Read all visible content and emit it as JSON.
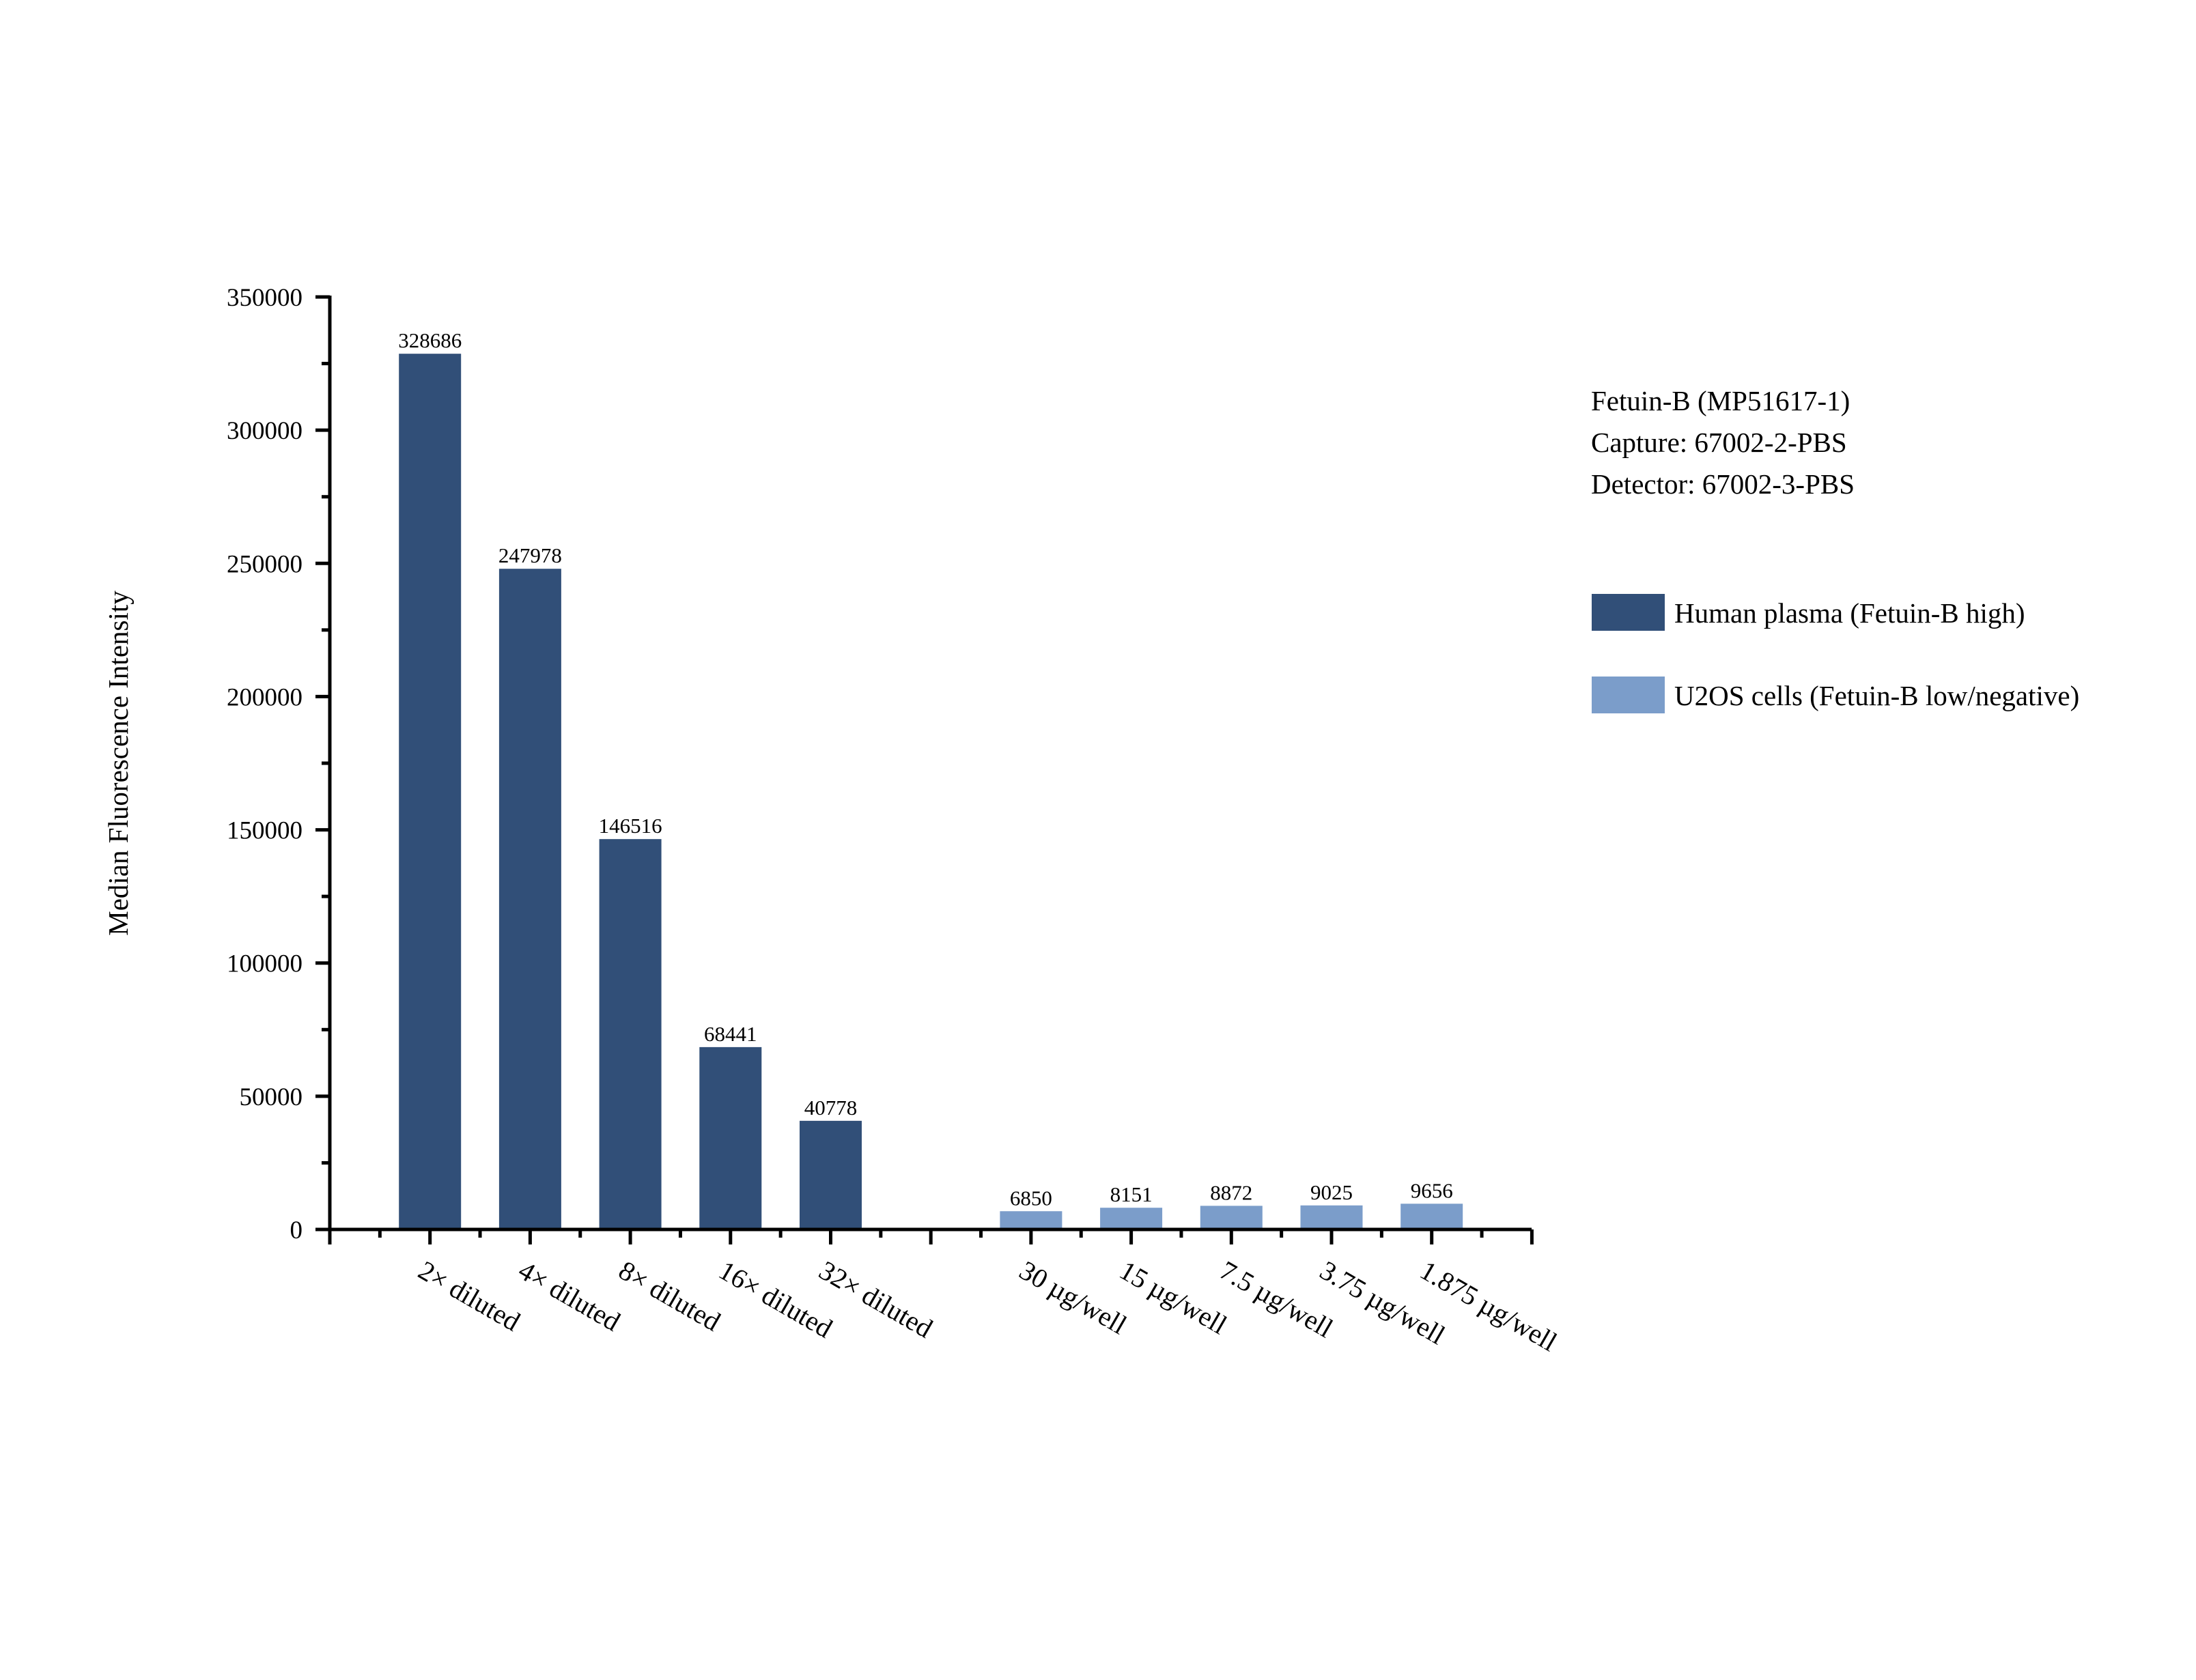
{
  "chart_data": {
    "type": "bar",
    "title": "",
    "xlabel": "",
    "ylabel": "Median Fluorescence Intensity",
    "ylim": [
      0,
      350000
    ],
    "yticks": [
      0,
      50000,
      100000,
      150000,
      200000,
      250000,
      300000,
      350000
    ],
    "ytick_labels": [
      "0",
      "50000",
      "100000",
      "150000",
      "200000",
      "250000",
      "300000",
      "350000"
    ],
    "grid": false,
    "legend_position": "right",
    "annotations": [
      "Fetuin-B (MP51617-1)",
      "Capture: 67002-2-PBS",
      "Detector: 67002-3-PBS"
    ],
    "categories": [
      "2× diluted",
      "4× diluted",
      "8× diluted",
      "16× diluted",
      "32× diluted",
      "30 µg/well",
      "15 µg/well",
      "7.5 µg/well",
      "3.75 µg/well",
      "1.875 µg/well"
    ],
    "series": [
      {
        "name": "Human plasma (Fetuin-B high)",
        "color": "#314F78",
        "categories": [
          "2× diluted",
          "4× diluted",
          "8× diluted",
          "16× diluted",
          "32× diluted"
        ],
        "values": [
          328686,
          247978,
          146516,
          68441,
          40778
        ]
      },
      {
        "name": "U2OS cells (Fetuin-B low/negative)",
        "color": "#7B9DCA",
        "categories": [
          "30 µg/well",
          "15 µg/well",
          "7.5 µg/well",
          "3.75 µg/well",
          "1.875 µg/well"
        ],
        "values": [
          6850,
          8151,
          8872,
          9025,
          9656
        ]
      }
    ]
  },
  "ylabel": "Median Fluorescence Intensity",
  "yticks": [
    "0",
    "50000",
    "100000",
    "150000",
    "200000",
    "250000",
    "300000",
    "350000"
  ],
  "annotation": {
    "line1": "Fetuin-B (MP51617-1)",
    "line2": "Capture: 67002-2-PBS",
    "line3": "Detector: 67002-3-PBS"
  },
  "legend": [
    {
      "label": "Human plasma (Fetuin-B high)",
      "color": "#314F78"
    },
    {
      "label": "U2OS cells (Fetuin-B low/negative)",
      "color": "#7B9DCA"
    }
  ],
  "bars": [
    {
      "category": "2× diluted",
      "value": "328686",
      "color": "#314F78"
    },
    {
      "category": "4× diluted",
      "value": "247978",
      "color": "#314F78"
    },
    {
      "category": "8× diluted",
      "value": "146516",
      "color": "#314F78"
    },
    {
      "category": "16× diluted",
      "value": "68441",
      "color": "#314F78"
    },
    {
      "category": "32× diluted",
      "value": "40778",
      "color": "#314F78"
    },
    {
      "category": "30 µg/well",
      "value": "6850",
      "color": "#7B9DCA"
    },
    {
      "category": "15 µg/well",
      "value": "8151",
      "color": "#7B9DCA"
    },
    {
      "category": "7.5 µg/well",
      "value": "8872",
      "color": "#7B9DCA"
    },
    {
      "category": "3.75 µg/well",
      "value": "9025",
      "color": "#7B9DCA"
    },
    {
      "category": "1.875 µg/well",
      "value": "9656",
      "color": "#7B9DCA"
    }
  ]
}
